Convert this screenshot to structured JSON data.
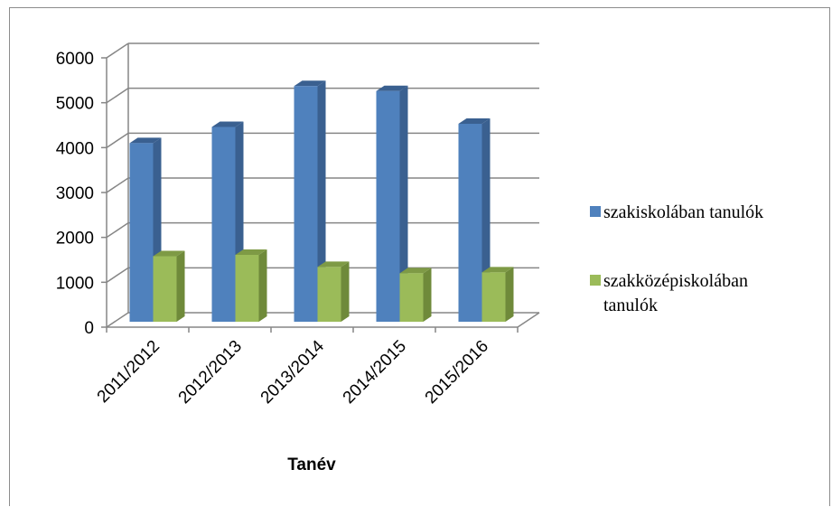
{
  "chart_data": {
    "type": "bar",
    "categories": [
      "2011/2012",
      "2012/2013",
      "2013/2014",
      "2014/2015",
      "2015/2016"
    ],
    "series": [
      {
        "name": "szakiskolában tanulók",
        "values": [
          3980,
          4340,
          5250,
          5140,
          4410
        ]
      },
      {
        "name": "szakközépiskolában tanulók",
        "values": [
          1460,
          1490,
          1220,
          1080,
          1100
        ]
      }
    ],
    "xlabel": "Tanév",
    "ylabel": "",
    "ylim": [
      0,
      6000
    ],
    "yticks": [
      0,
      1000,
      2000,
      3000,
      4000,
      5000,
      6000
    ],
    "grid": true,
    "legend": "right",
    "colors": {
      "series1": "#4F81BD",
      "series1_side": "#3A6090",
      "series1_top": "#3A6090",
      "series2": "#9BBB59",
      "series2_side": "#6F8A3A",
      "series2_top": "#7E9A45",
      "grid": "#868686"
    },
    "legend_lines": [
      [
        "szakiskolában tanulók"
      ],
      [
        "szakközépiskolában",
        "tanulók"
      ]
    ]
  }
}
